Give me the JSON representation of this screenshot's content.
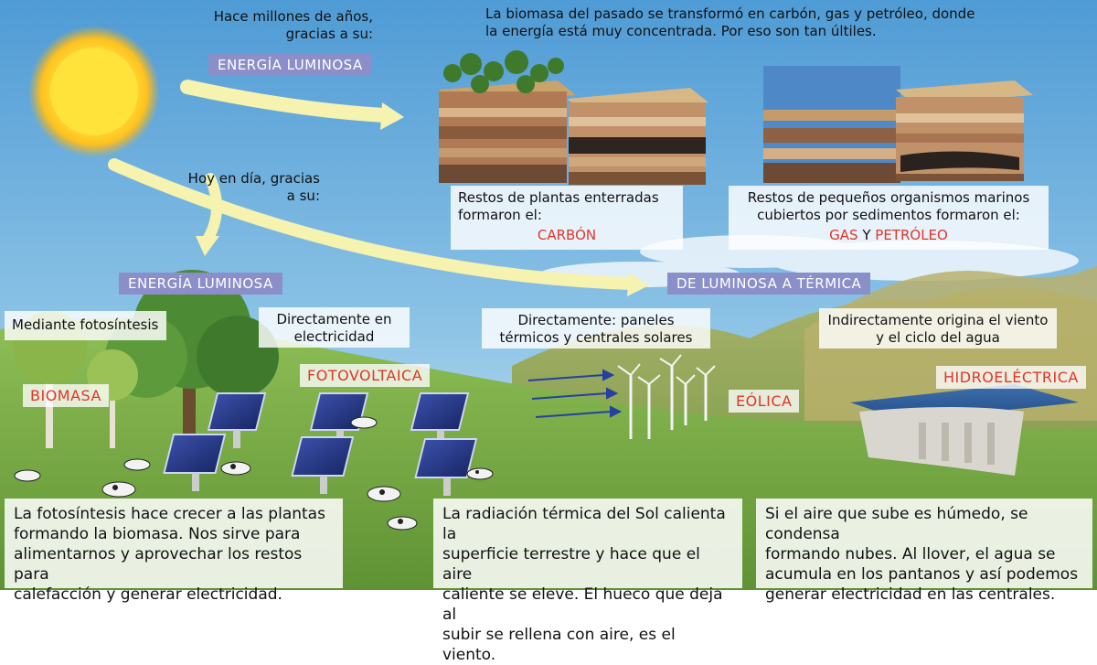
{
  "colors": {
    "sky_top": "#5aa3d8",
    "sky_bottom": "#cfe6f3",
    "grass": "#7fb04a",
    "badge": "#8b8fc9",
    "red_label": "#e0362b",
    "arrow": "#f6f2b0",
    "sun": "#ffe23a"
  },
  "icons": [
    "sun-icon",
    "arrow-icon",
    "solar-panel-icon",
    "wind-turbine-icon",
    "cow-icon",
    "tree-icon",
    "dam-icon",
    "soil-block-icon"
  ],
  "top": {
    "past_line1": "Hace millones de años,",
    "past_line2": "gracias a su:",
    "badge_past": "ENERGÍA LUMINOSA",
    "biomass_past_line1": "La biomasa del pasado se transformó en carbón, gas y petróleo, donde",
    "biomass_past_line2": "la energía está muy concentrada. Por eso son tan últiles.",
    "today_line1": "Hoy en día, gracias",
    "today_line2": "a su:"
  },
  "coal": {
    "line1": "Restos de plantas enterradas",
    "line2": "formaron el:",
    "name": "CARBÓN"
  },
  "gas": {
    "line1": "Restos de pequeños organismos marinos",
    "line2": "cubiertos por sedimentos formaron el:",
    "name1": "GAS",
    "joiner": "Y",
    "name2": "PETRÓLEO"
  },
  "middle": {
    "badge_light": "ENERGÍA LUMINOSA",
    "badge_thermal": "DE LUMINOSA A TÉRMICA",
    "photosynthesis": "Mediante fotosíntesis",
    "direct_elec_line1": "Directamente en",
    "direct_elec_line2": "electricidad",
    "direct_thermal_line1": "Directamente: paneles",
    "direct_thermal_line2": "térmicos y centrales solares",
    "indirect_line1": "Indirectamente origina el viento",
    "indirect_line2": "y el ciclo del agua"
  },
  "labels": {
    "biomasa": "BIOMASA",
    "fotovoltaica": "FOTOVOLTAICA",
    "eolica": "EÓLICA",
    "hidroelectrica": "HIDROELÉCTRICA"
  },
  "bottom": {
    "biomass_l1": "La fotosíntesis hace crecer a las plantas",
    "biomass_l2": "formando la biomasa. Nos sirve para",
    "biomass_l3": "alimentarnos y aprovechar los restos para",
    "biomass_l4": "calefacción y generar electricidad.",
    "wind_l1": "La radiación térmica del Sol calienta la",
    "wind_l2": "superficie terrestre y hace que el aire",
    "wind_l3": "caliente se eleve. El hueco que deja al",
    "wind_l4": "subir se rellena con aire, es el viento.",
    "water_l1": "Si el aire que sube es húmedo, se condensa",
    "water_l2": "formando nubes. Al llover, el agua se",
    "water_l3": "acumula en los pantanos y así podemos",
    "water_l4": "generar electricidad en las centrales."
  }
}
